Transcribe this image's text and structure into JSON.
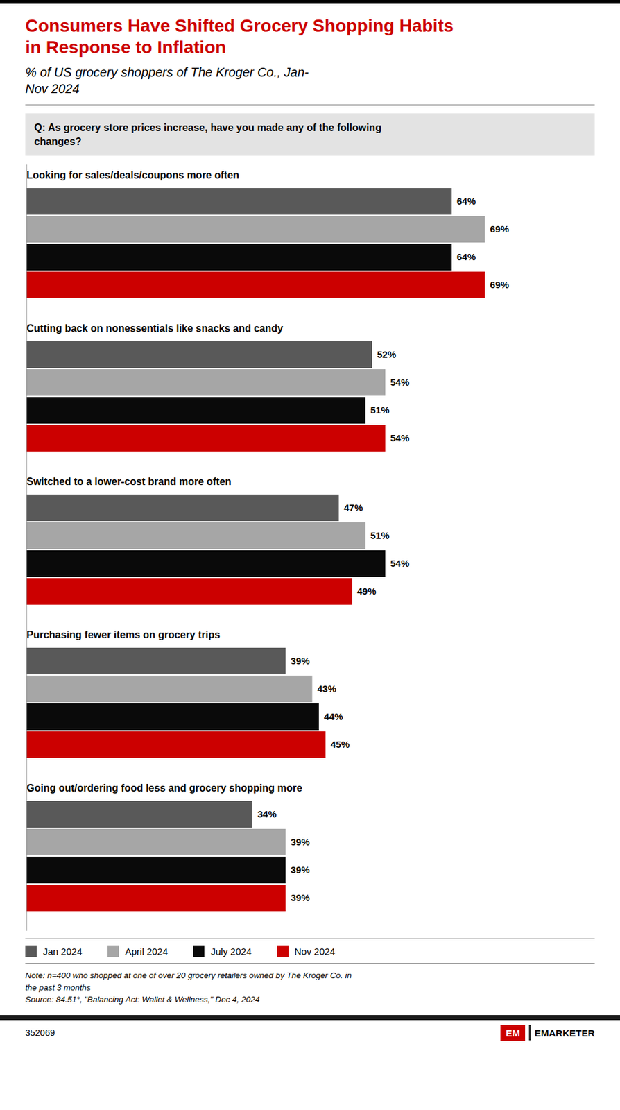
{
  "chart_data": {
    "type": "bar",
    "orientation": "horizontal",
    "title": "Consumers Have Shifted Grocery Shopping Habits\nin Response to Inflation",
    "subtitle": "% of US grocery shoppers of The Kroger Co., Jan-\nNov 2024",
    "annotations": [
      "Q: As grocery store prices increase, have you made any of the following\nchanges?",
      "Note: n=400 who shopped at one of over 20 grocery retailers owned by The Kroger Co. in\nthe past 3 months\nSource: 84.51°, \"Balancing Act: Wallet & Wellness,\" Dec 4, 2024",
      "352069",
      "EM",
      "EMARKETER"
    ],
    "categories": [
      "Looking for sales/deals/coupons more often",
      "Cutting back on nonessentials like snacks and candy",
      "Switched to a lower-cost brand more often",
      "Purchasing fewer items on grocery trips",
      "Going out/ordering food less and grocery shopping more"
    ],
    "series": [
      {
        "name": "Jan 2024",
        "color": "#595959",
        "values": [
          64,
          52,
          47,
          39,
          34
        ],
        "value_labels": [
          "64%",
          "52%",
          "47%",
          "39%",
          "34%"
        ]
      },
      {
        "name": "April 2024",
        "color": "#a6a6a6",
        "values": [
          69,
          54,
          51,
          43,
          39
        ],
        "value_labels": [
          "69%",
          "54%",
          "51%",
          "43%",
          "39%"
        ]
      },
      {
        "name": "July 2024",
        "color": "#0a0a0a",
        "values": [
          64,
          51,
          54,
          44,
          39
        ],
        "value_labels": [
          "64%",
          "51%",
          "54%",
          "44%",
          "39%"
        ]
      },
      {
        "name": "Nov 2024",
        "color": "#cc0000",
        "values": [
          69,
          54,
          49,
          45,
          39
        ],
        "value_labels": [
          "69%",
          "54%",
          "49%",
          "45%",
          "39%"
        ]
      }
    ],
    "xlim": [
      0,
      80
    ],
    "data_labels": true,
    "tick_labels": false,
    "grid": false,
    "legend": "bottom"
  }
}
